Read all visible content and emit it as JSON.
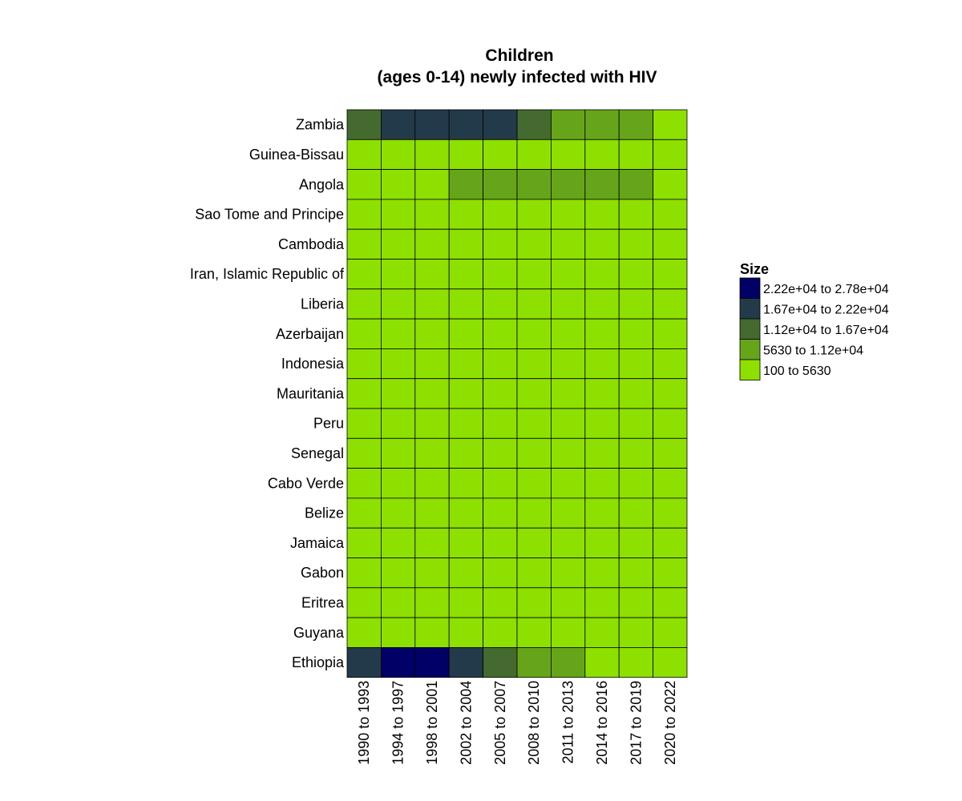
{
  "chart_data": {
    "type": "heatmap",
    "title": "Children",
    "subtitle": "(ages 0-14) newly infected with HIV",
    "legend_title": "Size",
    "legend_placement": "right",
    "grid": false,
    "x_categories": [
      "1990 to 1993",
      "1994 to 1997",
      "1998 to 2001",
      "2002 to 2004",
      "2005 to 2007",
      "2008 to 2010",
      "2011 to 2013",
      "2014 to 2016",
      "2017 to 2019",
      "2020 to 2022"
    ],
    "y_categories": [
      "Zambia",
      "Guinea-Bissau",
      "Angola",
      "Sao Tome and Principe",
      "Cambodia",
      "Iran, Islamic Republic of",
      "Liberia",
      "Azerbaijan",
      "Indonesia",
      "Mauritania",
      "Peru",
      "Senegal",
      "Cabo Verde",
      "Belize",
      "Jamaica",
      "Gabon",
      "Eritrea",
      "Guyana",
      "Ethiopia"
    ],
    "bins": [
      {
        "label": "2.22e+04  to  2.78e+04",
        "color": "#000066"
      },
      {
        "label": "1.67e+04  to  2.22e+04",
        "color": "#233A4B"
      },
      {
        "label": "1.12e+04  to  1.67e+04",
        "color": "#446A2F"
      },
      {
        "label": "5630  to  1.12e+04",
        "color": "#66A519"
      },
      {
        "label": "100  to  5630",
        "color": "#8EE000"
      }
    ],
    "cell_bins": [
      [
        2,
        1,
        1,
        1,
        1,
        2,
        3,
        3,
        3,
        4
      ],
      [
        4,
        4,
        4,
        4,
        4,
        4,
        4,
        4,
        4,
        4
      ],
      [
        4,
        4,
        4,
        3,
        3,
        3,
        3,
        3,
        3,
        4
      ],
      [
        4,
        4,
        4,
        4,
        4,
        4,
        4,
        4,
        4,
        4
      ],
      [
        4,
        4,
        4,
        4,
        4,
        4,
        4,
        4,
        4,
        4
      ],
      [
        4,
        4,
        4,
        4,
        4,
        4,
        4,
        4,
        4,
        4
      ],
      [
        4,
        4,
        4,
        4,
        4,
        4,
        4,
        4,
        4,
        4
      ],
      [
        4,
        4,
        4,
        4,
        4,
        4,
        4,
        4,
        4,
        4
      ],
      [
        4,
        4,
        4,
        4,
        4,
        4,
        4,
        4,
        4,
        4
      ],
      [
        4,
        4,
        4,
        4,
        4,
        4,
        4,
        4,
        4,
        4
      ],
      [
        4,
        4,
        4,
        4,
        4,
        4,
        4,
        4,
        4,
        4
      ],
      [
        4,
        4,
        4,
        4,
        4,
        4,
        4,
        4,
        4,
        4
      ],
      [
        4,
        4,
        4,
        4,
        4,
        4,
        4,
        4,
        4,
        4
      ],
      [
        4,
        4,
        4,
        4,
        4,
        4,
        4,
        4,
        4,
        4
      ],
      [
        4,
        4,
        4,
        4,
        4,
        4,
        4,
        4,
        4,
        4
      ],
      [
        4,
        4,
        4,
        4,
        4,
        4,
        4,
        4,
        4,
        4
      ],
      [
        4,
        4,
        4,
        4,
        4,
        4,
        4,
        4,
        4,
        4
      ],
      [
        4,
        4,
        4,
        4,
        4,
        4,
        4,
        4,
        4,
        4
      ],
      [
        1,
        0,
        0,
        1,
        2,
        3,
        3,
        4,
        4,
        4
      ]
    ]
  }
}
